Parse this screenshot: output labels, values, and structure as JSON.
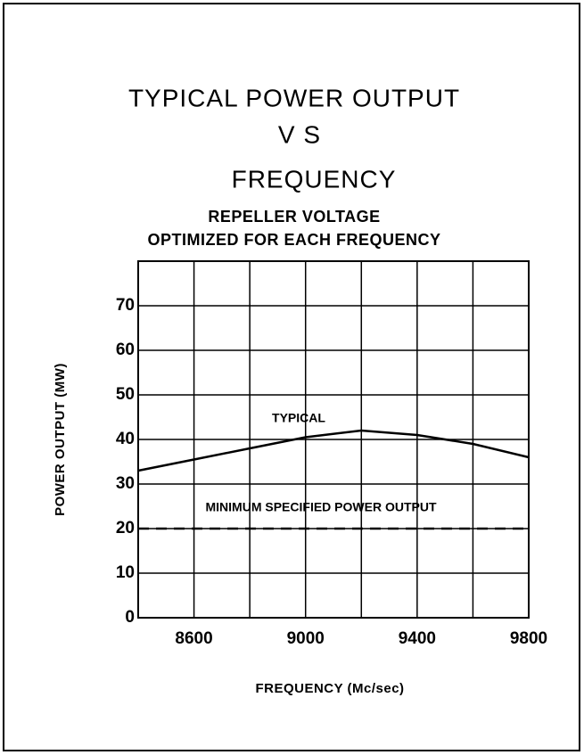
{
  "chart_data": {
    "type": "line",
    "title": [
      "TYPICAL POWER OUTPUT",
      "V S",
      "FREQUENCY"
    ],
    "subtitle": [
      "REPELLER VOLTAGE",
      "OPTIMIZED FOR EACH FREQUENCY"
    ],
    "xlabel": "FREQUENCY (Mc/sec)",
    "ylabel": "POWER OUTPUT (MW)",
    "xlim": [
      8400,
      9800
    ],
    "ylim": [
      0,
      80
    ],
    "xticks": [
      8600,
      9000,
      9400,
      9800
    ],
    "xminorticks": [
      8800,
      9200,
      9600
    ],
    "yticks": [
      0,
      10,
      20,
      30,
      40,
      50,
      60,
      70
    ],
    "grid": true,
    "series": [
      {
        "name": "TYPICAL",
        "color": "#000000",
        "dash": false,
        "x": [
          8400,
          8600,
          8800,
          9000,
          9200,
          9400,
          9600,
          9800
        ],
        "values": [
          33,
          35.5,
          38,
          40.5,
          42,
          41,
          39,
          36
        ]
      },
      {
        "name": "MINIMUM SPECIFIED POWER OUTPUT",
        "color": "#000000",
        "dash": true,
        "x": [
          8400,
          9800
        ],
        "values": [
          20,
          20
        ]
      }
    ]
  }
}
